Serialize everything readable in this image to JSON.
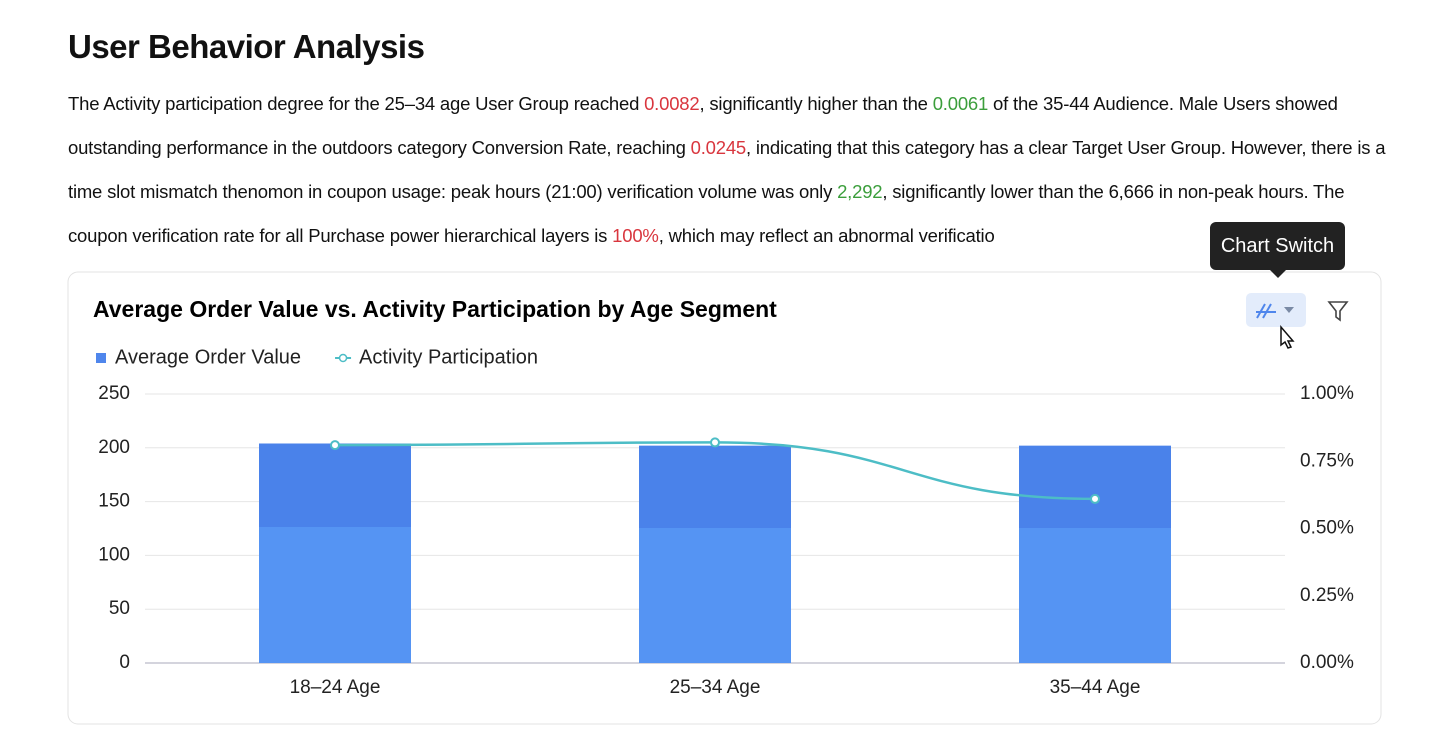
{
  "header": {
    "title": "User Behavior Analysis"
  },
  "paragraph": {
    "segments": [
      {
        "text": "The Activity participation degree for the 25–34 age User Group reached "
      },
      {
        "text": "0.0082",
        "color": "#d9363e"
      },
      {
        "text": ", significantly higher than the "
      },
      {
        "text": "0.0061",
        "color": "#3b9e3b"
      },
      {
        "text": " of the 35-44 Audience. Male Users showed outstanding performance in the outdoors category Conversion Rate, reaching "
      },
      {
        "text": "0.0245",
        "color": "#d9363e"
      },
      {
        "text": ", indicating that this category has a clear Target User Group. However, there is a time slot mismatch thenomon in coupon usage: peak hours (21:00) verification volume was only "
      },
      {
        "text": "2,292",
        "color": "#3b9e3b"
      },
      {
        "text": ", significantly lower than the 6,666 in non-peak hours. The coupon verification rate for all Purchase power hierarchical layers is "
      },
      {
        "text": "100%",
        "color": "#d9363e"
      },
      {
        "text": ", which may reflect an abnormal verificatio"
      }
    ]
  },
  "tooltip": "Chart Switch",
  "chart_data": {
    "type": "combo",
    "title": "Average Order Value vs. Activity Participation by Age Segment",
    "categories": [
      "18–24 Age",
      "25–34 Age",
      "35–44 Age"
    ],
    "series": [
      {
        "name": "Average Order Value",
        "type": "bar",
        "color": "#4f86ec",
        "values": [
          204,
          202,
          202
        ]
      },
      {
        "name": "Activity Participation",
        "type": "line",
        "color": "#4dbdc6",
        "axis": "y2",
        "values": [
          0.81,
          0.82,
          0.61
        ]
      }
    ],
    "ylim": [
      0,
      250
    ],
    "yticks": [
      0,
      50,
      100,
      150,
      200,
      250
    ],
    "y2lim": [
      0,
      1
    ],
    "y2ticks": [
      {
        "value": 0,
        "label": "0.00%"
      },
      {
        "value": 0.25,
        "label": "0.25%"
      },
      {
        "value": 0.5,
        "label": "0.50%"
      },
      {
        "value": 0.75,
        "label": "0.75%"
      },
      {
        "value": 1,
        "label": "1.00%"
      }
    ],
    "grid": true,
    "legend": "top-left"
  }
}
